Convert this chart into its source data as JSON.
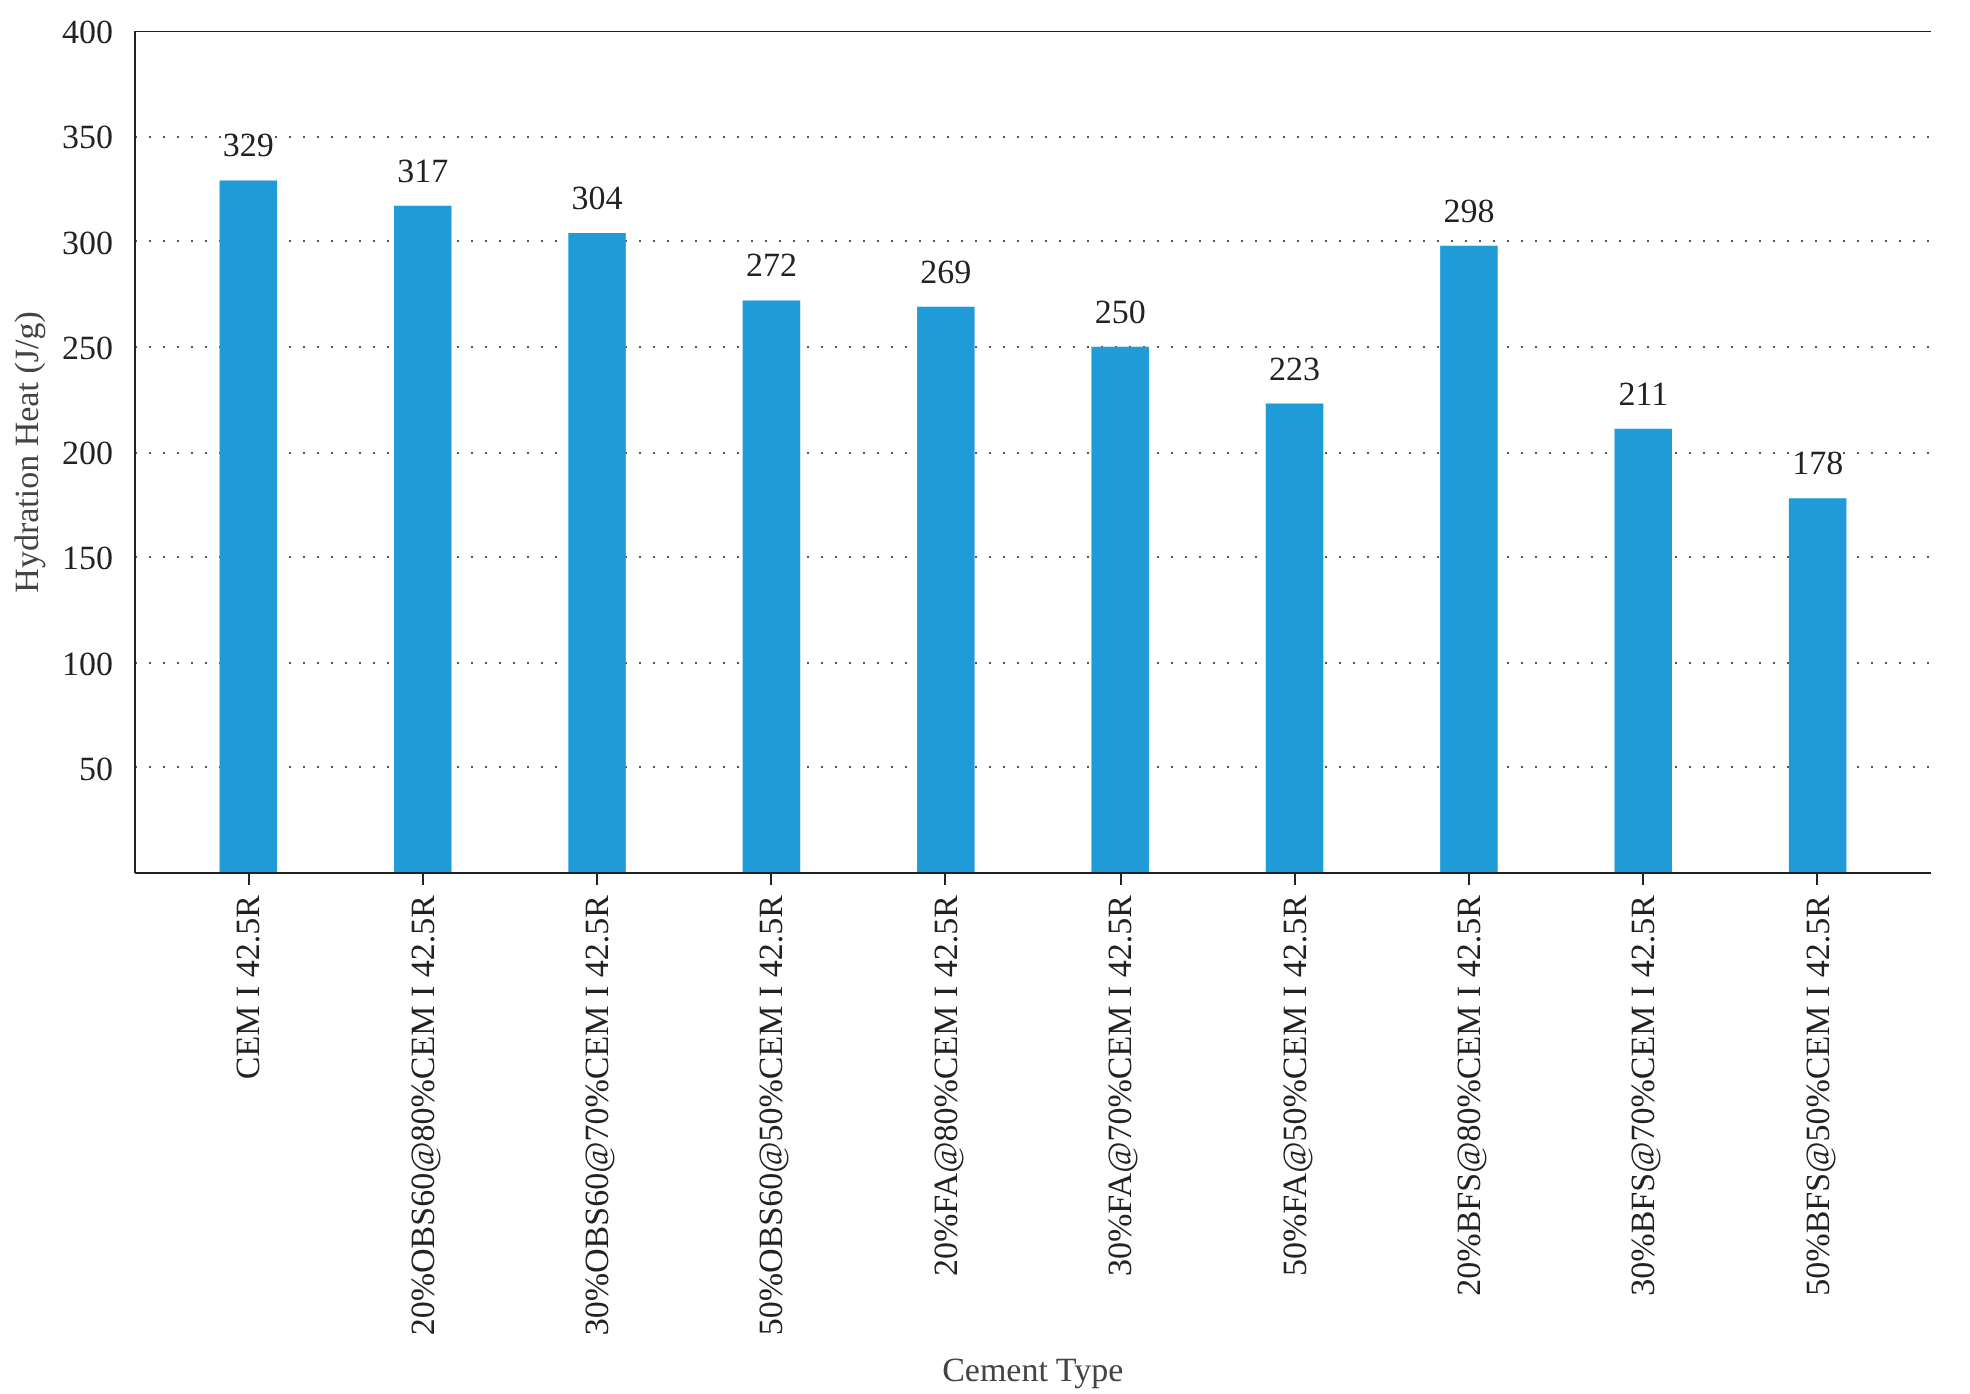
{
  "chart_data": {
    "type": "bar",
    "xlabel": "Cement Type",
    "ylabel": "Hydration Heat (J/g)",
    "categories": [
      "CEM I 42.5R",
      "20%OBS60@80%CEM I 42.5R",
      "30%OBS60@70%CEM I 42.5R",
      "50%OBS60@50%CEM I 42.5R",
      "20%FA@80%CEM I 42.5R",
      "30%FA@70%CEM I 42.5R",
      "50%FA@50%CEM I 42.5R",
      "20%BFS@80%CEM I 42.5R",
      "30%BFS@70%CEM I 42.5R",
      "50%BFS@50%CEM I 42.5R"
    ],
    "values": [
      329,
      317,
      304,
      272,
      269,
      250,
      223,
      298,
      211,
      178
    ],
    "color": "#1f9cd8",
    "ylim": [
      0,
      400
    ],
    "yticks": [
      50,
      100,
      150,
      200,
      250,
      300,
      350,
      400
    ],
    "grid": "y",
    "data_labels": true
  }
}
